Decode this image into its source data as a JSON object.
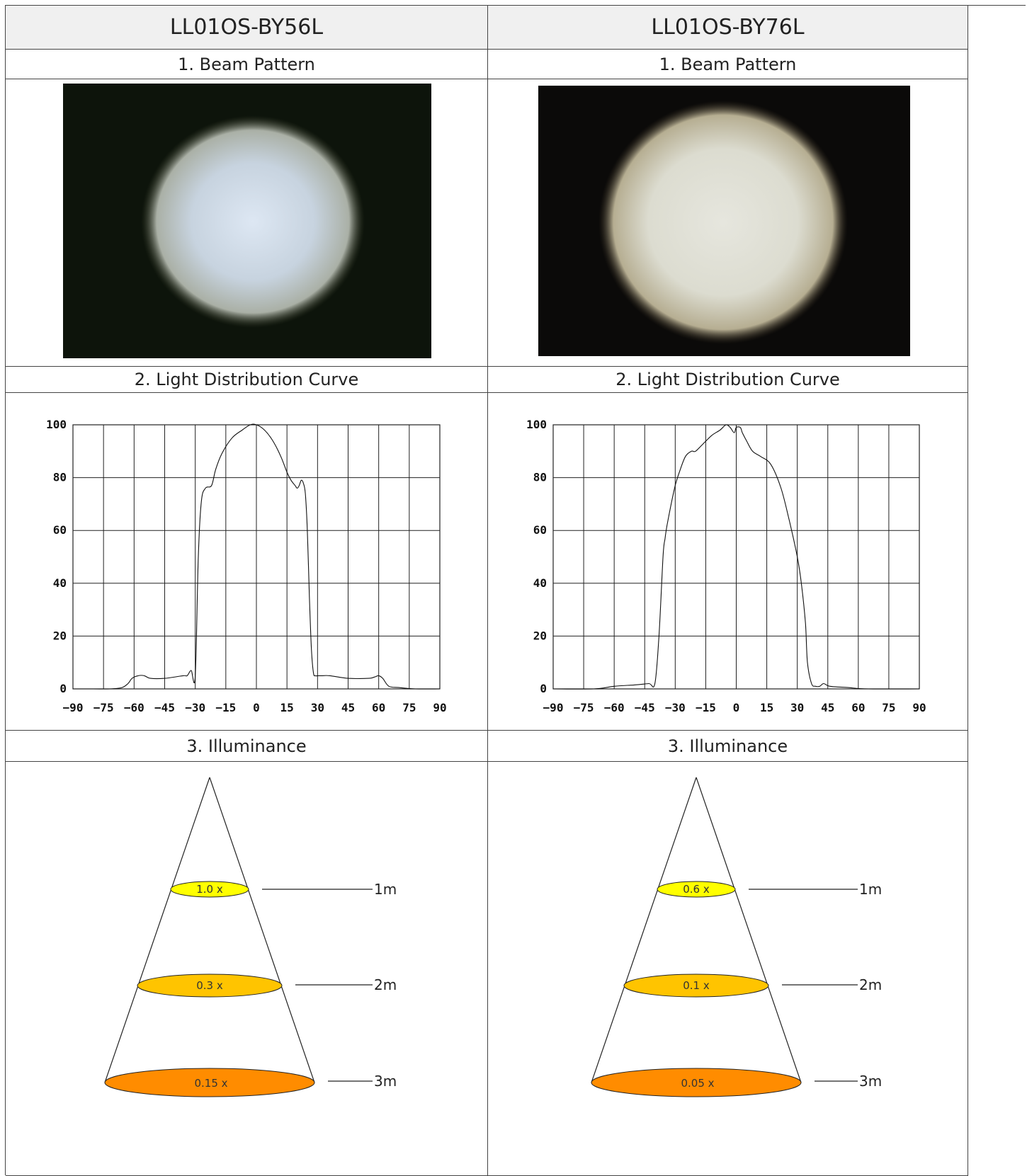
{
  "columns": [
    {
      "model": "LL01OS-BY56L",
      "beam_label": "1. Beam Pattern",
      "curve_label": "2. Light Distribution Curve",
      "illum_label": "3. Illuminance",
      "beam_tint": "#cfdcea",
      "illuminance": [
        {
          "distance": "1m",
          "value": "1.0 x",
          "color": "#ffff00"
        },
        {
          "distance": "2m",
          "value": "0.3 x",
          "color": "#ffc400"
        },
        {
          "distance": "3m",
          "value": "0.15 x",
          "color": "#ff8c00"
        }
      ]
    },
    {
      "model": "LL01OS-BY76L",
      "beam_label": "1. Beam Pattern",
      "curve_label": "2. Light Distribution Curve",
      "illum_label": "3. Illuminance",
      "beam_tint": "#e2e2d8",
      "illuminance": [
        {
          "distance": "1m",
          "value": "0.6 x",
          "color": "#ffff00"
        },
        {
          "distance": "2m",
          "value": "0.1 x",
          "color": "#ffc400"
        },
        {
          "distance": "3m",
          "value": "0.05 x",
          "color": "#ff8c00"
        }
      ]
    }
  ],
  "chart_data": [
    {
      "type": "line",
      "x_ticks": [
        -90,
        -75,
        -60,
        -45,
        -30,
        -15,
        0,
        15,
        30,
        45,
        60,
        75,
        90
      ],
      "y_ticks": [
        0,
        20,
        40,
        60,
        80,
        100
      ],
      "xlim": [
        -90,
        90
      ],
      "ylim": [
        0,
        100
      ],
      "grid": true,
      "x": [
        -90,
        -80,
        -72,
        -66,
        -63,
        -61,
        -58,
        -55,
        -52,
        -45,
        -36,
        -34,
        -32,
        -30,
        -28.5,
        -27,
        -25,
        -22,
        -20,
        -17,
        -12,
        -7,
        -3,
        0,
        4,
        8,
        12,
        15,
        17,
        19,
        20,
        21,
        22,
        23,
        24,
        25,
        26,
        27,
        28,
        29,
        30,
        32,
        36,
        45,
        55,
        58,
        60,
        62,
        65,
        70,
        78,
        90
      ],
      "y": [
        0,
        0,
        0,
        0.5,
        2,
        4,
        5,
        5,
        4,
        4,
        5,
        5,
        7,
        5,
        50,
        71,
        76,
        77,
        83,
        89,
        95,
        98,
        100,
        100,
        98,
        94,
        88,
        82,
        79,
        77,
        76,
        77,
        79,
        78,
        74,
        60,
        35,
        15,
        6,
        5,
        5,
        5,
        5,
        4,
        4,
        4.5,
        5,
        4,
        1,
        0.5,
        0,
        0
      ]
    },
    {
      "type": "line",
      "x_ticks": [
        -90,
        -75,
        -60,
        -45,
        -30,
        -15,
        0,
        15,
        30,
        45,
        60,
        75,
        90
      ],
      "y_ticks": [
        0,
        20,
        40,
        60,
        80,
        100
      ],
      "xlim": [
        -90,
        90
      ],
      "ylim": [
        0,
        100
      ],
      "grid": true,
      "x": [
        -90,
        -70,
        -60,
        -50,
        -43,
        -40,
        -38,
        -36,
        -35,
        -34,
        -32,
        -30,
        -28,
        -25,
        -22,
        -20,
        -16,
        -12,
        -8,
        -5,
        -3,
        -1,
        0,
        2,
        3,
        5,
        8,
        12,
        17,
        22,
        26,
        30,
        32,
        34,
        35,
        37,
        39,
        41,
        43,
        46,
        55,
        65,
        90
      ],
      "y": [
        0,
        0,
        1,
        1.5,
        2,
        2,
        20,
        50,
        57,
        62,
        70,
        77,
        82,
        88,
        90,
        90,
        93,
        96,
        98,
        100,
        99,
        97,
        99,
        99,
        97,
        94,
        90,
        88,
        85,
        76,
        64,
        50,
        40,
        25,
        10,
        2,
        1,
        1,
        2,
        1,
        0.5,
        0,
        0
      ]
    }
  ]
}
